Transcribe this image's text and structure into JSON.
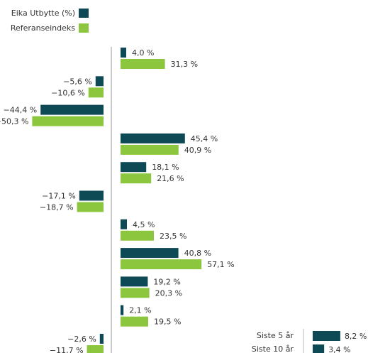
{
  "chart_data": [
    {
      "type": "bar",
      "orientation": "horizontal",
      "categories": [
        null,
        null,
        null,
        null,
        null,
        null,
        null,
        null,
        null,
        null,
        null
      ],
      "series": [
        {
          "name": "Eika Utbytte (%)",
          "color": "#0e4a55",
          "values": [
            4.0,
            -5.6,
            -44.4,
            45.4,
            18.1,
            -17.1,
            4.5,
            40.8,
            19.2,
            2.1,
            -2.6
          ],
          "value_labels": [
            "4,0 %",
            "−5,6 %",
            "−44,4 %",
            "45,4 %",
            "18,1 %",
            "−17,1 %",
            "4,5 %",
            "40,8 %",
            "19,2 %",
            "2,1 %",
            "−2,6 %"
          ]
        },
        {
          "name": "Referanseindeks",
          "color": "#8cc63f",
          "values": [
            31.3,
            -10.6,
            -50.3,
            40.9,
            21.6,
            -18.7,
            23.5,
            57.1,
            20.3,
            19.5,
            -11.7
          ],
          "value_labels": [
            "31,3 %",
            "−10,6 %",
            "−50,3 %",
            "40,9 %",
            "21,6 %",
            "−18,7 %",
            "23,5 %",
            "57,1 %",
            "20,3 %",
            "19,5 %",
            "−11,7 %"
          ]
        }
      ],
      "legend": "top-left"
    },
    {
      "type": "bar",
      "orientation": "horizontal",
      "categories": [
        "Siste 5 år",
        "Siste 10 år"
      ],
      "values": [
        8.2,
        3.4
      ],
      "value_labels": [
        "8,2 %",
        "3,4 %"
      ],
      "color": "#0e4a55"
    }
  ]
}
